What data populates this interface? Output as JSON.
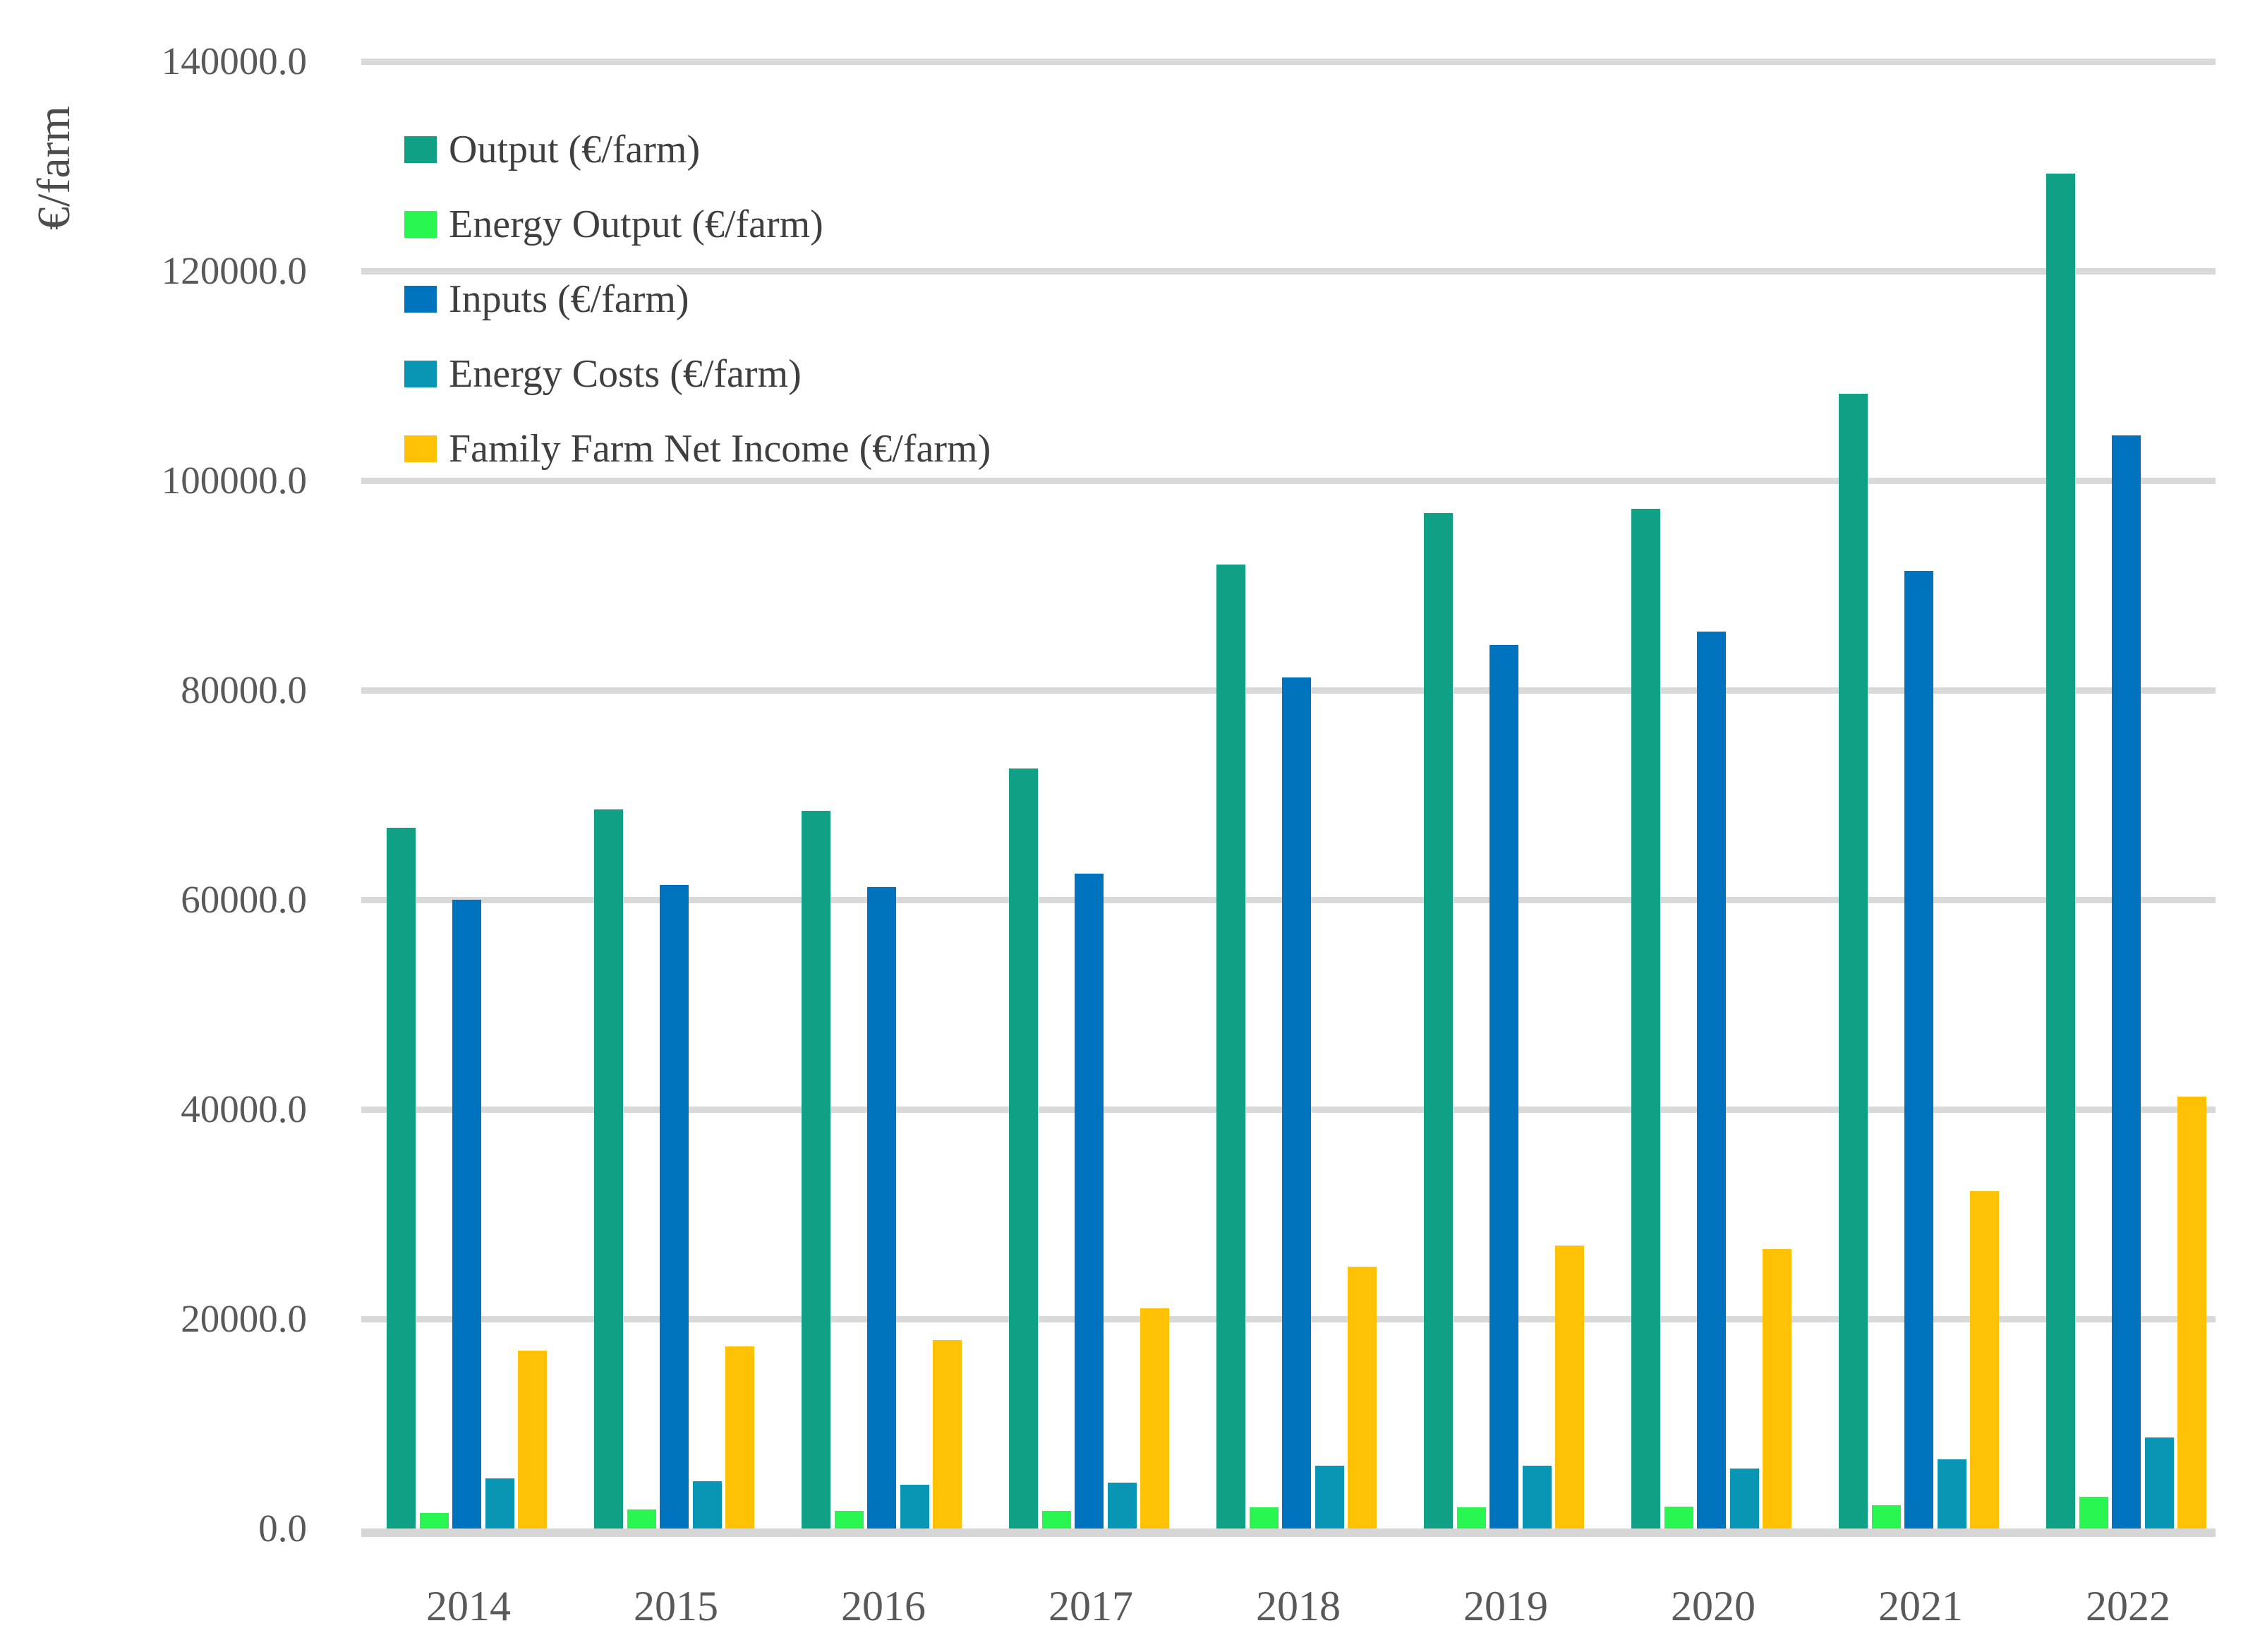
{
  "chart_data": {
    "type": "bar",
    "title": "",
    "xlabel": "",
    "ylabel": "€/farm",
    "ylim": [
      0,
      140000
    ],
    "ytick_step": 20000,
    "y_tick_labels": [
      "0.0",
      "20000.0",
      "40000.0",
      "60000.0",
      "80000.0",
      "100000.0",
      "120000.0",
      "140000.0"
    ],
    "grid": true,
    "legend_position": "upper-left",
    "categories": [
      "2014",
      "2015",
      "2016",
      "2017",
      "2018",
      "2019",
      "2020",
      "2021",
      "2022"
    ],
    "series": [
      {
        "name": "Output (€/farm)",
        "color": "#10A086",
        "values": [
          66900,
          68600,
          68500,
          72500,
          92000,
          96900,
          97300,
          108300,
          129300
        ]
      },
      {
        "name": "Energy Output (€/farm)",
        "color": "#28F550",
        "values": [
          1500,
          1800,
          1700,
          1700,
          2000,
          2000,
          2100,
          2200,
          3000
        ]
      },
      {
        "name": "Inputs (€/farm)",
        "color": "#0073BE",
        "values": [
          60000,
          61400,
          61200,
          62500,
          81200,
          84300,
          85600,
          91400,
          104300
        ]
      },
      {
        "name": "Energy Costs (€/farm)",
        "color": "#0996B4",
        "values": [
          4800,
          4500,
          4200,
          4400,
          6000,
          6000,
          5700,
          6600,
          8700
        ]
      },
      {
        "name": "Family Farm Net Income (€/farm)",
        "color": "#FFC103",
        "values": [
          17000,
          17400,
          18000,
          21000,
          25000,
          27000,
          26700,
          32200,
          41200
        ]
      }
    ]
  }
}
